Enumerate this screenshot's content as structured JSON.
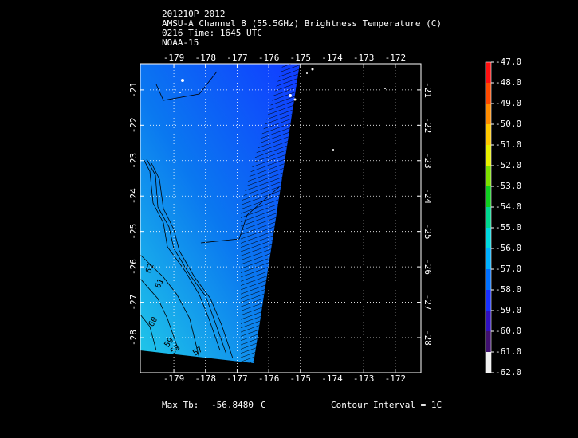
{
  "header": {
    "lines": [
      "201210P 2012",
      "AMSU-A Channel 8 (55.5GHz) Brightness Temperature (C)",
      "0216 Time: 1645 UTC",
      "NOAA-15"
    ]
  },
  "map": {
    "lonlim": [
      -180.06,
      -171.19
    ],
    "latlim": [
      -20.26,
      -28.99
    ],
    "lonticks": [
      -179,
      -178,
      -177,
      -176,
      -175,
      -174,
      -173,
      -172
    ],
    "latticks": [
      -21,
      -22,
      -23,
      -24,
      -25,
      -26,
      -27,
      -28
    ],
    "contour_labels": [
      "62",
      "61",
      "60",
      "59",
      "58",
      "57"
    ]
  },
  "colorbar": {
    "ticks": [
      {
        "value": -47,
        "label": "-47.0"
      },
      {
        "value": -48,
        "label": "-48.0"
      },
      {
        "value": -49,
        "label": "-49.0"
      },
      {
        "value": -50,
        "label": "-50.0"
      },
      {
        "value": -51,
        "label": "-51.0"
      },
      {
        "value": -52,
        "label": "-52.0"
      },
      {
        "value": -53,
        "label": "-53.0"
      },
      {
        "value": -54,
        "label": "-54.0"
      },
      {
        "value": -55,
        "label": "-55.0"
      },
      {
        "value": -56,
        "label": "-56.0"
      },
      {
        "value": -57,
        "label": "-57.0"
      },
      {
        "value": -58,
        "label": "-58.0"
      },
      {
        "value": -59,
        "label": "-59.0"
      },
      {
        "value": -60,
        "label": "-60.0"
      },
      {
        "value": -61,
        "label": "-61.0"
      },
      {
        "value": -62,
        "label": "-62.0"
      }
    ],
    "colors": [
      "#ff1010",
      "#ff4a00",
      "#ff8c00",
      "#ffc800",
      "#e8f000",
      "#7ee000",
      "#10d020",
      "#00d890",
      "#00d8e0",
      "#00b0ff",
      "#0070ff",
      "#1830ff",
      "#3010c0",
      "#401070",
      "#f0f0f0"
    ]
  },
  "footer": {
    "max_label": "Max Tb:",
    "max_value": "-56.8480",
    "max_unit": "C",
    "interval": "Contour Interval = 1C"
  }
}
